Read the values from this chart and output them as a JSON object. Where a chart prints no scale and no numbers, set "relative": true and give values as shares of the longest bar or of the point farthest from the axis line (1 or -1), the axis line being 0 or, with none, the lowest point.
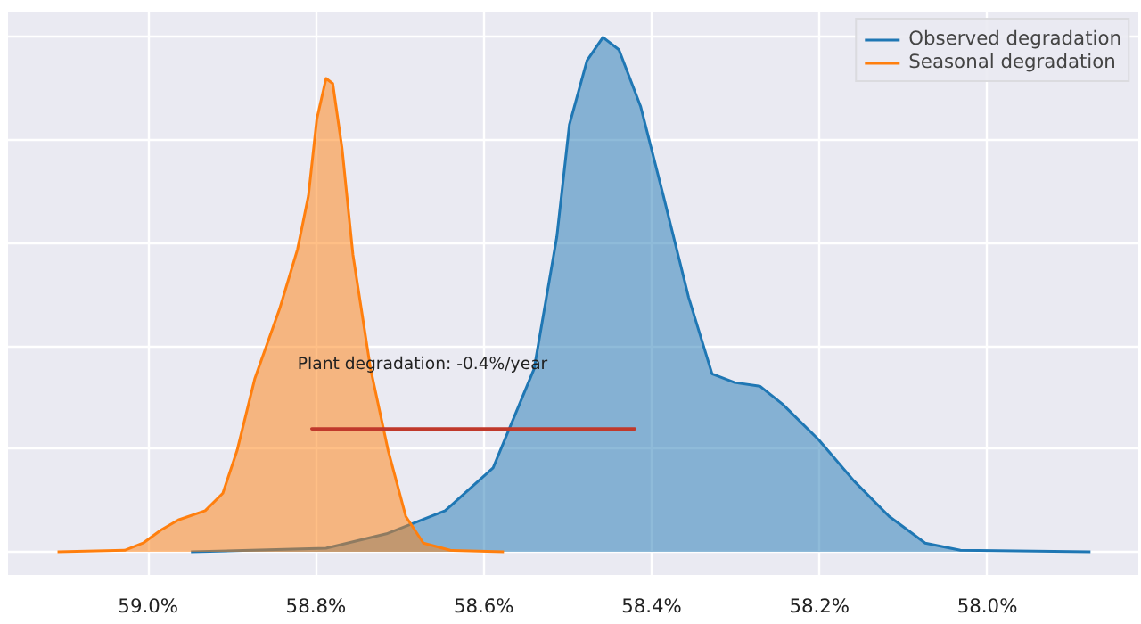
{
  "chart_data": {
    "type": "area",
    "relative": true,
    "xlim": [
      59.167,
      57.82
    ],
    "xticks": [
      {
        "value": 59.0,
        "label": "59.0%"
      },
      {
        "value": 58.8,
        "label": "58.8%"
      },
      {
        "value": 58.6,
        "label": "58.6%"
      },
      {
        "value": 58.4,
        "label": "58.4%"
      },
      {
        "value": 58.2,
        "label": "58.2%"
      },
      {
        "value": 58.0,
        "label": "58.0%"
      }
    ],
    "grid": true,
    "legend": "top right",
    "series": [
      {
        "name": "Observed degradation",
        "color": "#1f77b4",
        "x": [
          58.949,
          58.788,
          58.716,
          58.646,
          58.589,
          58.54,
          58.513,
          58.498,
          58.477,
          58.458,
          58.439,
          58.413,
          58.386,
          58.356,
          58.328,
          58.301,
          58.271,
          58.244,
          58.201,
          58.159,
          58.117,
          58.074,
          58.032,
          57.877
        ],
        "values": [
          0,
          0.007,
          0.035,
          0.08,
          0.163,
          0.356,
          0.612,
          0.83,
          0.955,
          1,
          0.976,
          0.865,
          0.692,
          0.495,
          0.346,
          0.329,
          0.322,
          0.287,
          0.218,
          0.138,
          0.069,
          0.017,
          0.003,
          0
        ]
      },
      {
        "name": "Seasonal degradation",
        "color": "#ff7f0e",
        "x": [
          59.108,
          59.028,
          59.006,
          58.985,
          58.964,
          58.932,
          58.911,
          58.894,
          58.873,
          58.843,
          58.822,
          58.809,
          58.799,
          58.788,
          58.78,
          58.769,
          58.756,
          58.735,
          58.714,
          58.693,
          58.672,
          58.64,
          58.576
        ],
        "values": [
          0,
          0.003,
          0.017,
          0.042,
          0.062,
          0.08,
          0.114,
          0.197,
          0.336,
          0.474,
          0.588,
          0.692,
          0.841,
          0.92,
          0.91,
          0.785,
          0.578,
          0.356,
          0.197,
          0.069,
          0.017,
          0.003,
          0
        ]
      },
      {
        "type": "line",
        "color": "#c0392b",
        "x": [
          58.805,
          58.42
        ],
        "values": [
          0.239,
          0.239
        ]
      }
    ],
    "annotations": [
      "Plant degradation: -0.4%/year"
    ]
  }
}
